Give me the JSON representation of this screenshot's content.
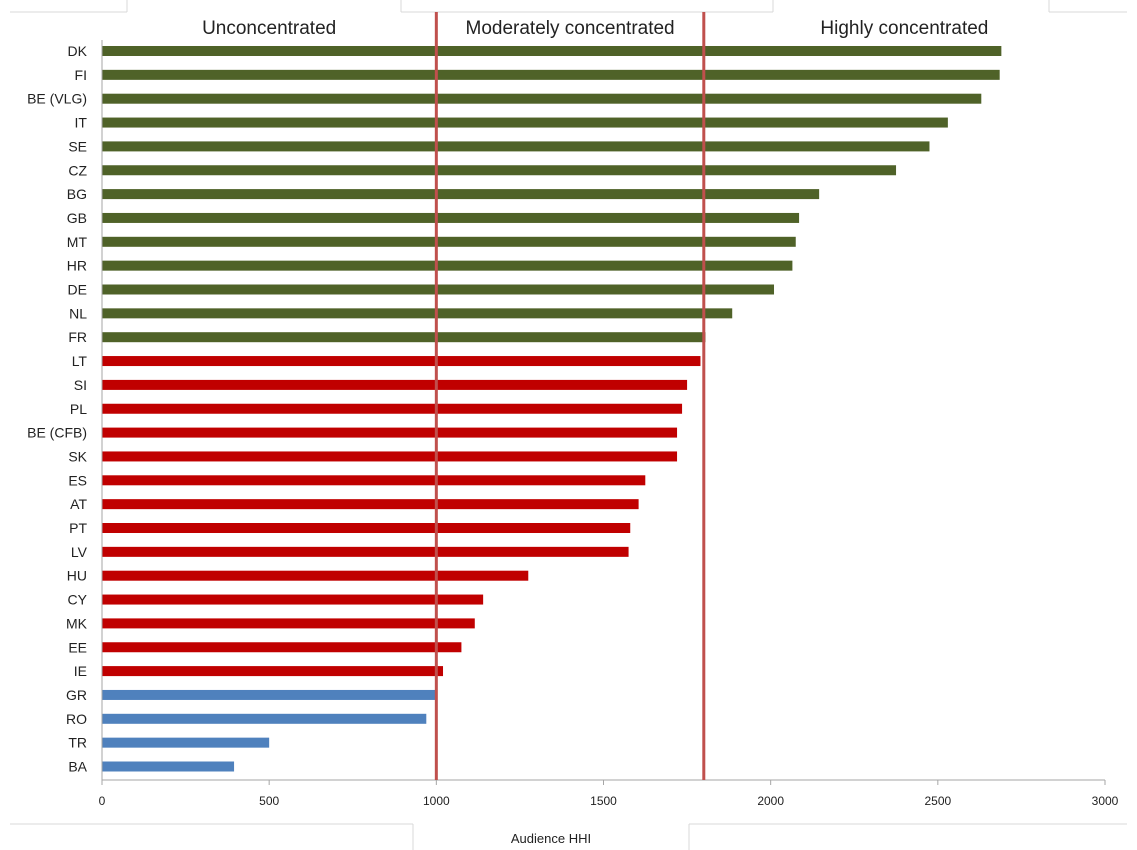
{
  "chart_data": {
    "type": "bar",
    "orientation": "horizontal",
    "xlabel": "Audience HHI",
    "ylabel": "",
    "xlim": [
      0,
      3000
    ],
    "xticks": [
      0,
      500,
      1000,
      1500,
      2000,
      2500,
      3000
    ],
    "grid": false,
    "zones": [
      {
        "label": "Unconcentrated",
        "from": 0,
        "to": 1000
      },
      {
        "label": "Moderately concentrated",
        "from": 1000,
        "to": 1800
      },
      {
        "label": "Highly concentrated",
        "from": 1800,
        "to": 3000
      }
    ],
    "thresholds": [
      1000,
      1800
    ],
    "colors": {
      "highly": "#4f6228",
      "moderately": "#c00000",
      "unconcentrated": "#4f81bd",
      "threshold": "#c0504d",
      "axis": "#a6a6a6"
    },
    "categories": [
      "DK",
      "FI",
      "BE (VLG)",
      "IT",
      "SE",
      "CZ",
      "BG",
      "GB",
      "MT",
      "HR",
      "DE",
      "NL",
      "FR",
      "LT",
      "SI",
      "PL",
      "BE (CFB)",
      "SK",
      "ES",
      "AT",
      "PT",
      "LV",
      "HU",
      "CY",
      "MK",
      "EE",
      "IE",
      "GR",
      "RO",
      "TR",
      "BA"
    ],
    "values": [
      2690,
      2685,
      2630,
      2530,
      2475,
      2375,
      2145,
      2085,
      2075,
      2065,
      2010,
      1885,
      1805,
      1790,
      1750,
      1735,
      1720,
      1720,
      1625,
      1605,
      1580,
      1575,
      1275,
      1140,
      1115,
      1075,
      1020,
      1000,
      970,
      500,
      395
    ],
    "groups": [
      "highly",
      "highly",
      "highly",
      "highly",
      "highly",
      "highly",
      "highly",
      "highly",
      "highly",
      "highly",
      "highly",
      "highly",
      "highly",
      "moderately",
      "moderately",
      "moderately",
      "moderately",
      "moderately",
      "moderately",
      "moderately",
      "moderately",
      "moderately",
      "moderately",
      "moderately",
      "moderately",
      "moderately",
      "moderately",
      "unconcentrated",
      "unconcentrated",
      "unconcentrated",
      "unconcentrated"
    ]
  }
}
